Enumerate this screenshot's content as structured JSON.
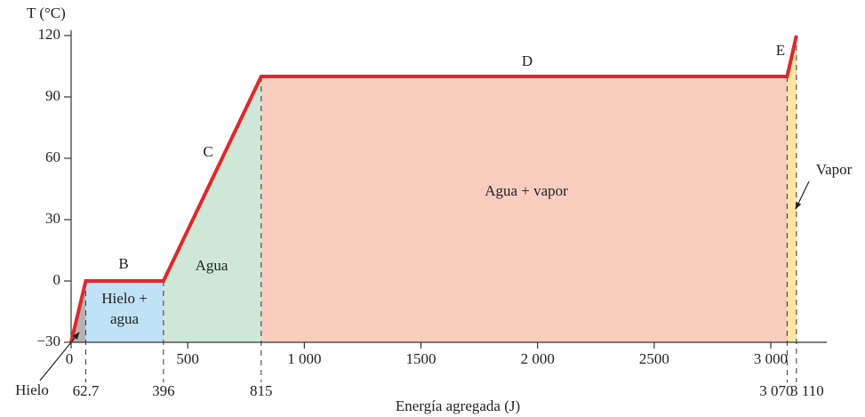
{
  "chart_data": {
    "type": "line",
    "ylabel": "T (°C)",
    "xlabel": "Energía agregada (J)",
    "xlim": [
      0,
      3240
    ],
    "ylim": [
      -30,
      120
    ],
    "xticks": [
      0,
      500,
      {
        "value": 1000,
        "label": "1 000"
      },
      1500,
      {
        "value": 2000,
        "label": "2 000"
      },
      2500,
      {
        "value": 3000,
        "label": "3 000"
      }
    ],
    "yticks": [
      {
        "value": -30,
        "label": "−30"
      },
      0,
      30,
      60,
      90,
      120
    ],
    "series": [
      {
        "color": "#e3262b",
        "x": [
          0,
          62.7,
          396,
          815,
          3070,
          3110
        ],
        "values": [
          -30,
          0,
          0,
          100,
          100,
          120
        ],
        "x_value_labels": [
          null,
          "62.7",
          "396",
          "815",
          "3 070",
          "3 110"
        ]
      }
    ],
    "segment_labels": [
      null,
      "B",
      "C",
      "D",
      "E"
    ],
    "phases": [
      {
        "label": [
          "Hielo"
        ],
        "color": "#b3b3b3"
      },
      {
        "label": [
          "Hielo +",
          "agua"
        ],
        "color": "#bfe2f6"
      },
      {
        "label": [
          "Agua"
        ],
        "color": "#cde8d6"
      },
      {
        "label": [
          "Agua + vapor"
        ],
        "color": "#f9cebf"
      },
      {
        "label": [
          "Vapor"
        ],
        "color": "#fbe6a2"
      }
    ]
  }
}
